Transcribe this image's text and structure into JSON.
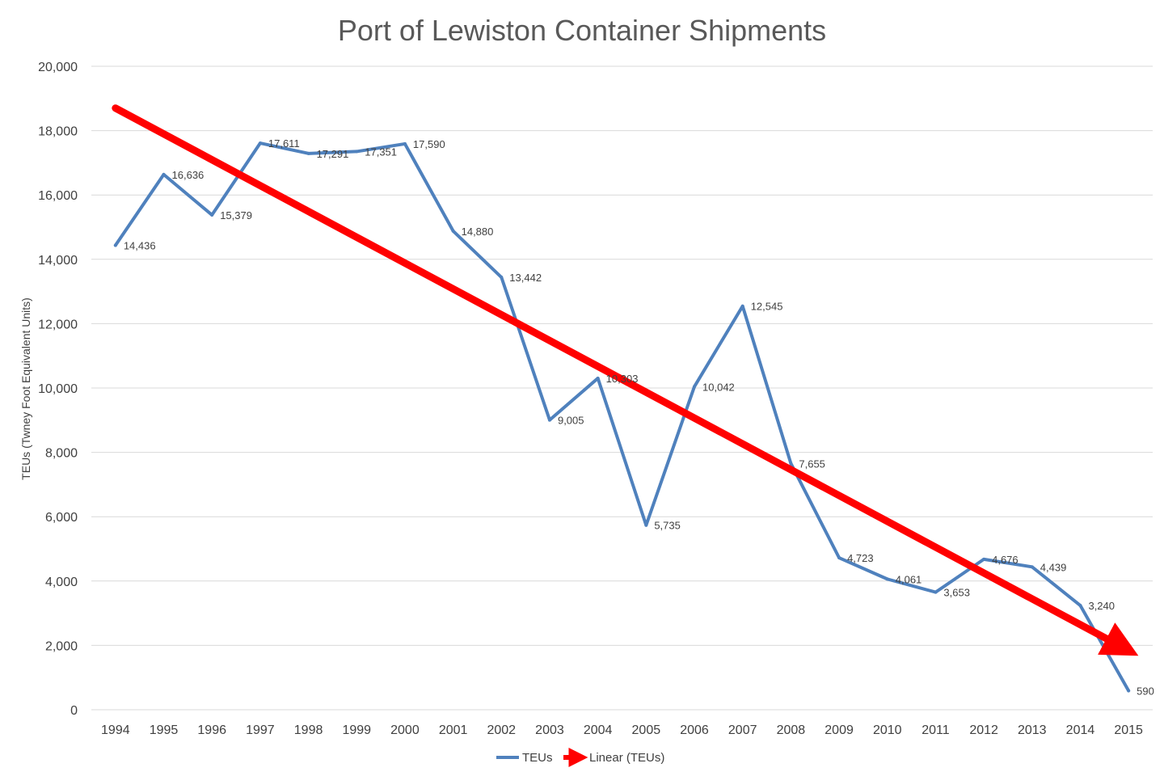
{
  "chart_data": {
    "type": "line",
    "title": "Port of Lewiston Container Shipments",
    "xlabel": "",
    "ylabel": "TEUs (Twney Foot Equivalent Units)",
    "ylim": [
      0,
      20000
    ],
    "yticks": [
      0,
      2000,
      4000,
      6000,
      8000,
      10000,
      12000,
      14000,
      16000,
      18000,
      20000
    ],
    "ytick_labels": [
      "0",
      "2,000",
      "4,000",
      "6,000",
      "8,000",
      "10,000",
      "12,000",
      "14,000",
      "16,000",
      "18,000",
      "20,000"
    ],
    "categories": [
      "1994",
      "1995",
      "1996",
      "1997",
      "1998",
      "1999",
      "2000",
      "2001",
      "2002",
      "2003",
      "2004",
      "2005",
      "2006",
      "2007",
      "2008",
      "2009",
      "2010",
      "2011",
      "2012",
      "2013",
      "2014",
      "2015"
    ],
    "grid": true,
    "legend_position": "bottom",
    "series": [
      {
        "name": "TEUs",
        "color": "#4f81bd",
        "values": [
          14436,
          16636,
          15379,
          17611,
          17291,
          17351,
          17590,
          14880,
          13442,
          9005,
          10303,
          5735,
          10042,
          12545,
          7655,
          4723,
          4061,
          3653,
          4676,
          4439,
          3240,
          590
        ],
        "labels": [
          "14,436",
          "16,636",
          "15,379",
          "17,611",
          "17,291",
          "17,351",
          "17,590",
          "14,880",
          "13,442",
          "9,005",
          "10,303",
          "5,735",
          "10,042",
          "12,545",
          "7,655",
          "4,723",
          "4,061",
          "3,653",
          "4,676",
          "4,439",
          "3,240",
          "590"
        ]
      }
    ],
    "trendline": {
      "name": "Linear (TEUs)",
      "color": "#ff0000",
      "start": {
        "category": "1994",
        "value": 18700
      },
      "end": {
        "category": "2015",
        "value": 1850
      }
    }
  }
}
